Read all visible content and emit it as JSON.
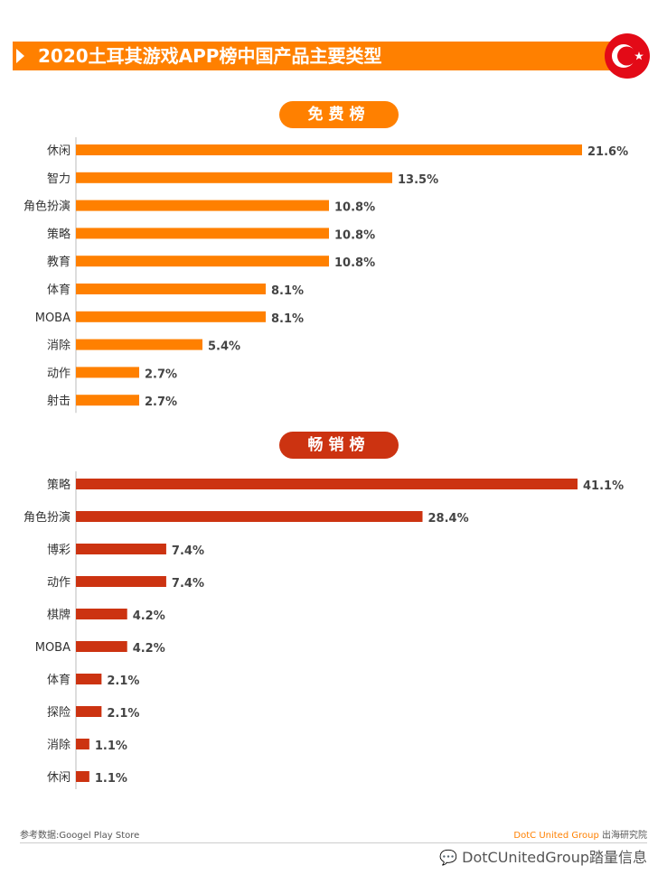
{
  "title": "2020土耳其游戏APP榜中国产品主要类型",
  "colors": {
    "free": "#ff8000",
    "paid": "#cc3311",
    "title_bg": "#ff8000"
  },
  "icons": [
    "turkey-flag-icon",
    "play-arrow-icon",
    "wechat-icon"
  ],
  "chart_data": [
    {
      "type": "bar",
      "orientation": "horizontal",
      "title": "免费榜",
      "categories": [
        "休闲",
        "智力",
        "角色扮演",
        "策略",
        "教育",
        "体育",
        "MOBA",
        "消除",
        "动作",
        "射击"
      ],
      "values": [
        21.6,
        13.5,
        10.8,
        10.8,
        10.8,
        8.1,
        8.1,
        5.4,
        2.7,
        2.7
      ],
      "labels": [
        "21.6%",
        "13.5%",
        "10.8%",
        "10.8%",
        "10.8%",
        "8.1%",
        "8.1%",
        "5.4%",
        "2.7%",
        "2.7%"
      ]
    },
    {
      "type": "bar",
      "orientation": "horizontal",
      "title": "畅销榜",
      "categories": [
        "策略",
        "角色扮演",
        "博彩",
        "动作",
        "棋牌",
        "MOBA",
        "体育",
        "探险",
        "消除",
        "休闲"
      ],
      "values": [
        41.1,
        28.4,
        7.4,
        7.4,
        4.2,
        4.2,
        2.1,
        2.1,
        1.1,
        1.1
      ],
      "labels": [
        "41.1%",
        "28.4%",
        "7.4%",
        "7.4%",
        "4.2%",
        "4.2%",
        "2.1%",
        "2.1%",
        "1.1%",
        "1.1%"
      ]
    }
  ],
  "footer": {
    "source": "参考数据:Googel Play Store",
    "brand_name": "DotC United Group",
    "brand_suffix": " 出海研究院",
    "wechat": "DotCUnitedGroup踏量信息"
  }
}
